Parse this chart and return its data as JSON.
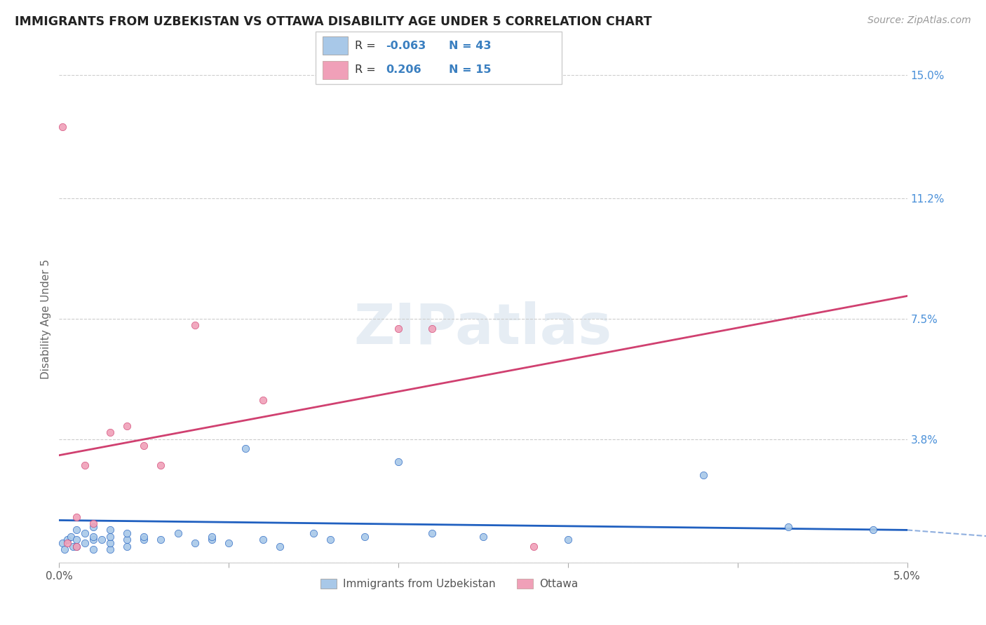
{
  "title": "IMMIGRANTS FROM UZBEKISTAN VS OTTAWA DISABILITY AGE UNDER 5 CORRELATION CHART",
  "source": "Source: ZipAtlas.com",
  "ylabel": "Disability Age Under 5",
  "xlim": [
    0.0,
    0.05
  ],
  "ylim": [
    0.0,
    0.15
  ],
  "ytick_positions": [
    0.0,
    0.038,
    0.075,
    0.112,
    0.15
  ],
  "ytick_labels": [
    "",
    "3.8%",
    "7.5%",
    "11.2%",
    "15.0%"
  ],
  "legend_labels": [
    "Immigrants from Uzbekistan",
    "Ottawa"
  ],
  "R1": -0.063,
  "N1": 43,
  "R2": 0.206,
  "N2": 15,
  "color_blue": "#a8c8e8",
  "color_pink": "#f0a0b8",
  "line_color_blue": "#2060c0",
  "line_color_pink": "#d04070",
  "blue_line_x0": 0.0,
  "blue_line_y0": 0.013,
  "blue_line_x1": 0.05,
  "blue_line_y1": 0.01,
  "pink_line_x0": 0.0,
  "pink_line_y0": 0.033,
  "pink_line_x1": 0.05,
  "pink_line_y1": 0.082,
  "blue_scatter_x": [
    0.0002,
    0.0003,
    0.0005,
    0.0007,
    0.0008,
    0.001,
    0.001,
    0.001,
    0.0015,
    0.0015,
    0.002,
    0.002,
    0.002,
    0.002,
    0.0025,
    0.003,
    0.003,
    0.003,
    0.003,
    0.004,
    0.004,
    0.004,
    0.005,
    0.005,
    0.006,
    0.007,
    0.008,
    0.009,
    0.009,
    0.01,
    0.011,
    0.012,
    0.013,
    0.015,
    0.016,
    0.018,
    0.02,
    0.022,
    0.025,
    0.03,
    0.038,
    0.043,
    0.048
  ],
  "blue_scatter_y": [
    0.006,
    0.004,
    0.007,
    0.008,
    0.005,
    0.005,
    0.007,
    0.01,
    0.006,
    0.009,
    0.004,
    0.007,
    0.008,
    0.011,
    0.007,
    0.004,
    0.006,
    0.008,
    0.01,
    0.005,
    0.007,
    0.009,
    0.007,
    0.008,
    0.007,
    0.009,
    0.006,
    0.007,
    0.008,
    0.006,
    0.035,
    0.007,
    0.005,
    0.009,
    0.007,
    0.008,
    0.031,
    0.009,
    0.008,
    0.007,
    0.027,
    0.011,
    0.01
  ],
  "pink_scatter_x": [
    0.0002,
    0.0005,
    0.001,
    0.001,
    0.0015,
    0.002,
    0.003,
    0.004,
    0.005,
    0.006,
    0.008,
    0.012,
    0.02,
    0.022,
    0.028
  ],
  "pink_scatter_y": [
    0.134,
    0.006,
    0.005,
    0.014,
    0.03,
    0.012,
    0.04,
    0.042,
    0.036,
    0.03,
    0.073,
    0.05,
    0.072,
    0.072,
    0.005
  ]
}
